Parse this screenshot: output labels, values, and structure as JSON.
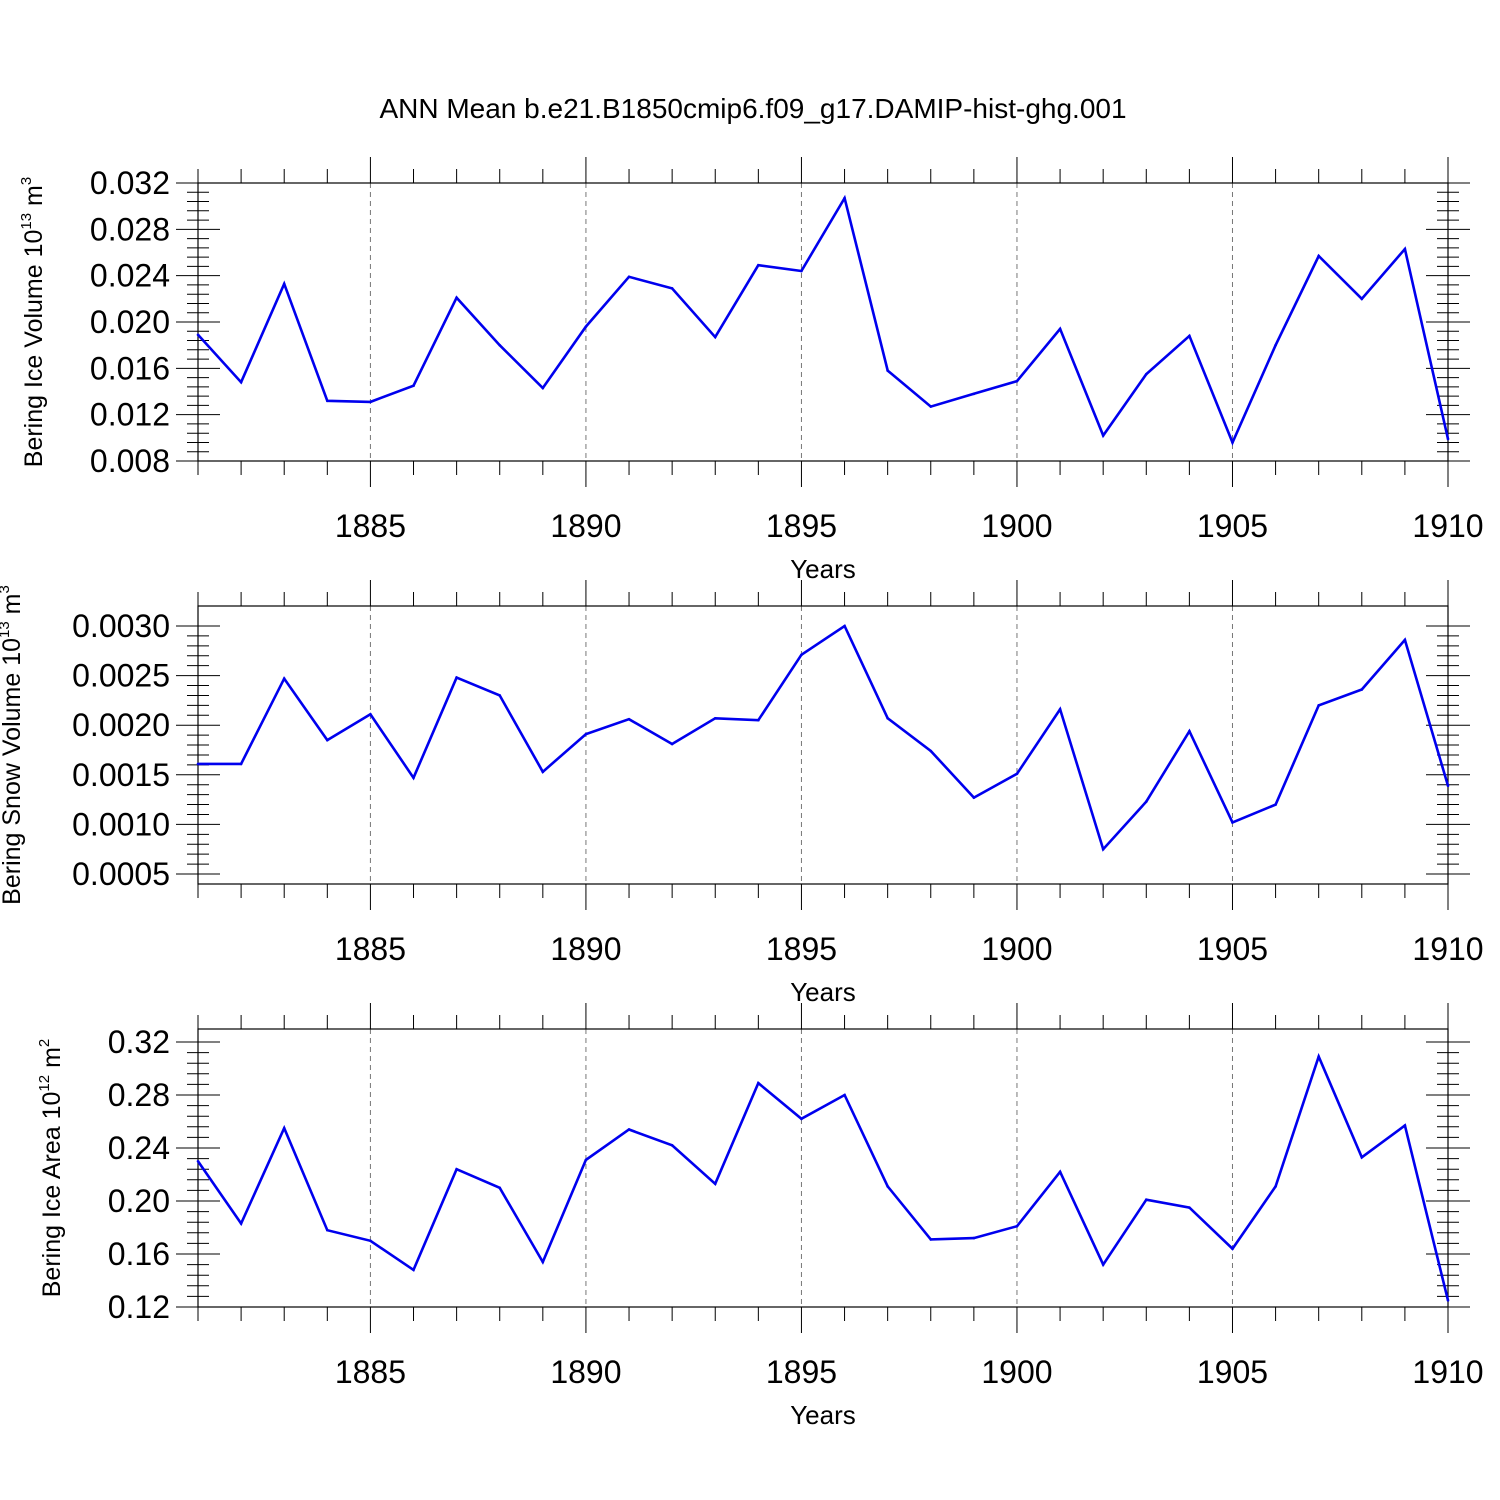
{
  "title": "ANN Mean b.e21.B1850cmip6.f09_g17.DAMIP-hist-ghg.001",
  "colors": {
    "line": "#0000ee",
    "axis": "#000000",
    "grid": "#777777"
  },
  "chart_data": [
    {
      "type": "line",
      "name": "ice-volume",
      "ylabel": {
        "text": "Bering Ice Volume 10",
        "exp": "13",
        "unit": " m",
        "unit_exp": "3"
      },
      "xlabel": "Years",
      "xlim": [
        1881,
        1910
      ],
      "ylim": [
        0.008,
        0.032
      ],
      "yticks": [
        "0.008",
        "0.012",
        "0.016",
        "0.020",
        "0.024",
        "0.028",
        "0.032"
      ],
      "xticks": [
        "1885",
        "1890",
        "1895",
        "1900",
        "1905",
        "1910"
      ],
      "x": [
        1881,
        1882,
        1883,
        1884,
        1885,
        1886,
        1887,
        1888,
        1889,
        1890,
        1891,
        1892,
        1893,
        1894,
        1895,
        1896,
        1897,
        1898,
        1899,
        1900,
        1901,
        1902,
        1903,
        1904,
        1905,
        1906,
        1907,
        1908,
        1909,
        1910
      ],
      "values": [
        0.0189,
        0.0148,
        0.0233,
        0.0132,
        0.0131,
        0.0145,
        0.0221,
        0.018,
        0.0143,
        0.0196,
        0.0239,
        0.0229,
        0.0187,
        0.0249,
        0.0244,
        0.0307,
        0.0158,
        0.0127,
        0.0138,
        0.0149,
        0.0194,
        0.0102,
        0.0155,
        0.0188,
        0.0096,
        0.018,
        0.0257,
        0.022,
        0.0263,
        0.0099
      ]
    },
    {
      "type": "line",
      "name": "snow-volume",
      "ylabel": {
        "text": "Bering Snow Volume 10",
        "exp": "13",
        "unit": " m",
        "unit_exp": "3"
      },
      "xlabel": "Years",
      "xlim": [
        1881,
        1910
      ],
      "ylim": [
        0.0004,
        0.0032
      ],
      "yticks": [
        "0.0005",
        "0.0010",
        "0.0015",
        "0.0020",
        "0.0025",
        "0.0030"
      ],
      "xticks": [
        "1885",
        "1890",
        "1895",
        "1900",
        "1905",
        "1910"
      ],
      "x": [
        1881,
        1882,
        1883,
        1884,
        1885,
        1886,
        1887,
        1888,
        1889,
        1890,
        1891,
        1892,
        1893,
        1894,
        1895,
        1896,
        1897,
        1898,
        1899,
        1900,
        1901,
        1902,
        1903,
        1904,
        1905,
        1906,
        1907,
        1908,
        1909,
        1910
      ],
      "values": [
        0.00161,
        0.00161,
        0.00247,
        0.00185,
        0.00211,
        0.00147,
        0.00248,
        0.0023,
        0.00153,
        0.00191,
        0.00206,
        0.00181,
        0.00207,
        0.00205,
        0.00271,
        0.003,
        0.00207,
        0.00174,
        0.00127,
        0.00151,
        0.00216,
        0.00075,
        0.00123,
        0.00194,
        0.00102,
        0.0012,
        0.0022,
        0.00236,
        0.00286,
        0.00139
      ]
    },
    {
      "type": "line",
      "name": "ice-area",
      "ylabel": {
        "text": "Bering Ice Area 10",
        "exp": "12",
        "unit": " m",
        "unit_exp": "2"
      },
      "xlabel": "Years",
      "xlim": [
        1881,
        1910
      ],
      "ylim": [
        0.12,
        0.33
      ],
      "yticks": [
        "0.12",
        "0.16",
        "0.20",
        "0.24",
        "0.28",
        "0.32"
      ],
      "xticks": [
        "1885",
        "1890",
        "1895",
        "1900",
        "1905",
        "1910"
      ],
      "x": [
        1881,
        1882,
        1883,
        1884,
        1885,
        1886,
        1887,
        1888,
        1889,
        1890,
        1891,
        1892,
        1893,
        1894,
        1895,
        1896,
        1897,
        1898,
        1899,
        1900,
        1901,
        1902,
        1903,
        1904,
        1905,
        1906,
        1907,
        1908,
        1909,
        1910
      ],
      "values": [
        0.23,
        0.183,
        0.255,
        0.178,
        0.17,
        0.148,
        0.224,
        0.21,
        0.154,
        0.231,
        0.254,
        0.242,
        0.213,
        0.289,
        0.262,
        0.28,
        0.211,
        0.171,
        0.172,
        0.181,
        0.222,
        0.152,
        0.201,
        0.195,
        0.164,
        0.211,
        0.309,
        0.233,
        0.257,
        0.125
      ]
    }
  ]
}
